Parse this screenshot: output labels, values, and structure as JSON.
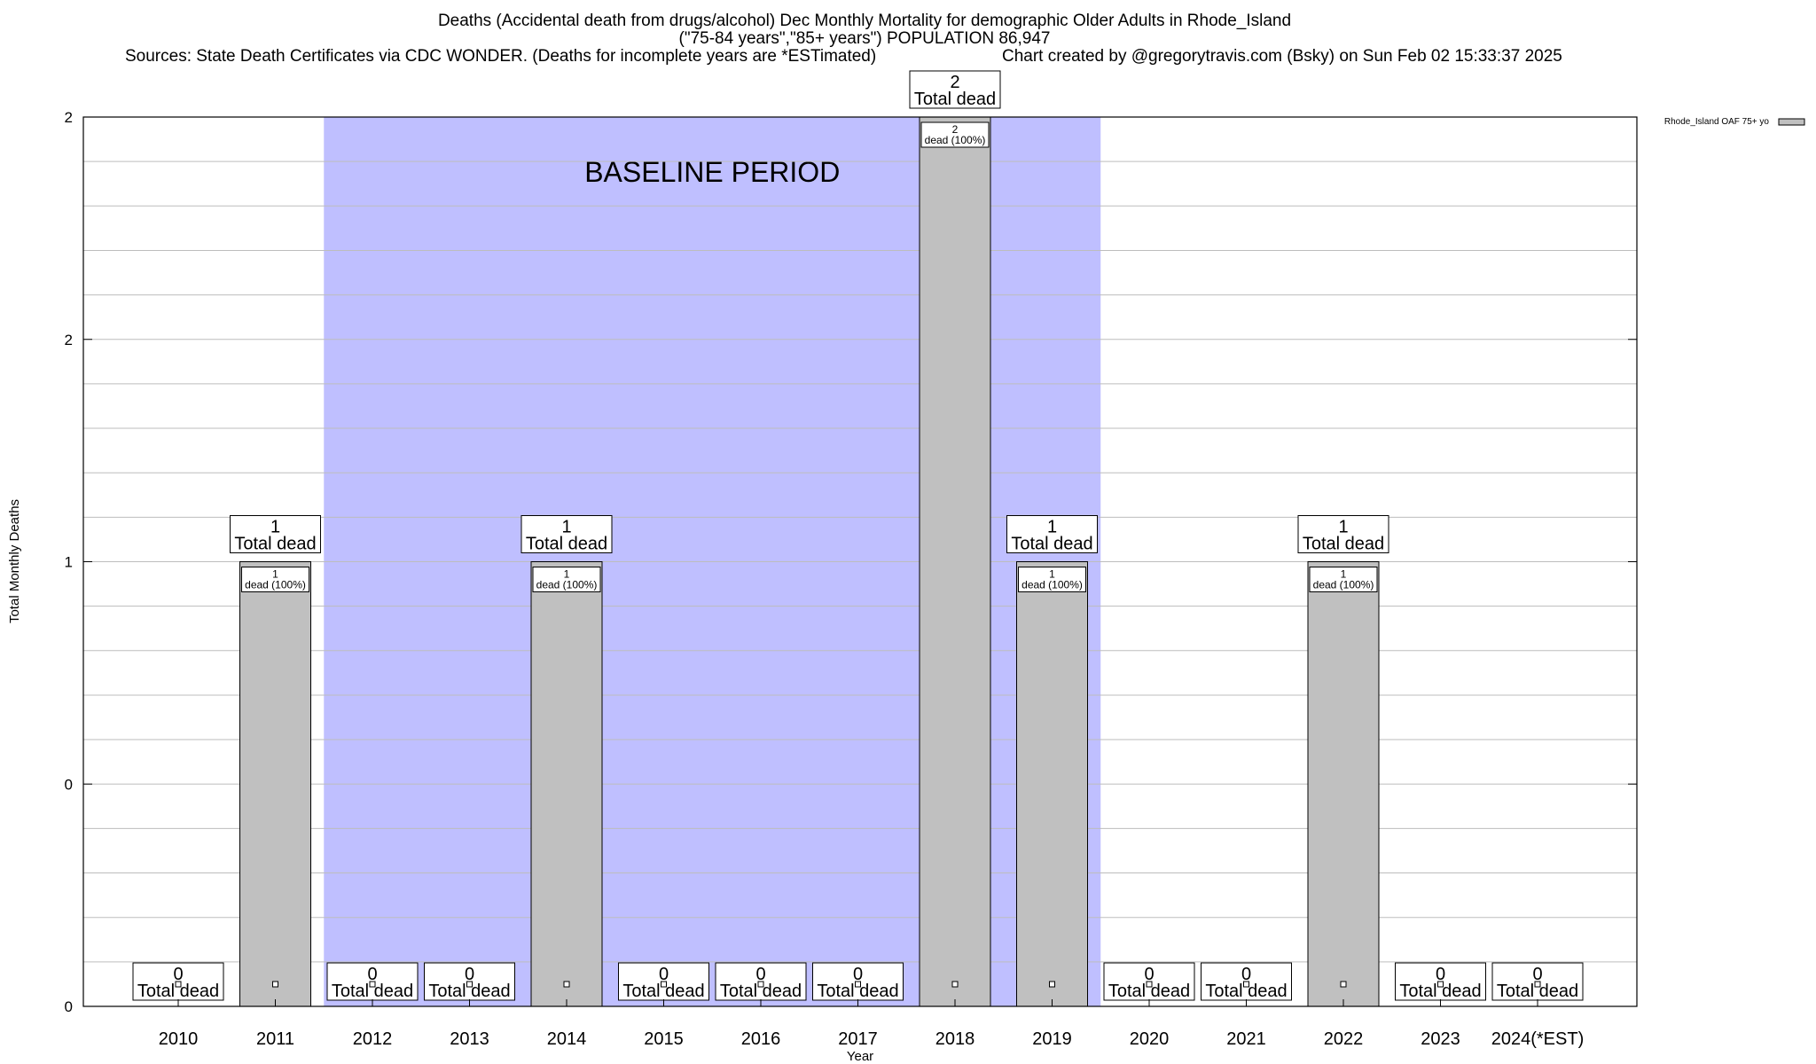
{
  "title_lines": [
    "Deaths (Accidental death from drugs/alcohol) Dec Monthly Mortality for demographic Older Adults in Rhode_Island",
    "(\"75-84 years\",\"85+ years\") POPULATION 86,947",
    "Sources: State Death Certificates via CDC WONDER. (Deaths for incomplete years are *ESTimated)",
    "Chart created by @gregorytravis.com (Bsky) on Sun Feb 02 15:33:37 2025"
  ],
  "chart_data": {
    "type": "bar",
    "xlabel": "Year",
    "ylabel": "Total Monthly Deaths",
    "ylim": [
      0,
      2
    ],
    "y_tick_labels": [
      "0",
      "0",
      "1",
      "2",
      "2"
    ],
    "grid": true,
    "legend": {
      "label": "Rhode_Island OAF 75+ yo",
      "placement": "top-right"
    },
    "categories": [
      "2010",
      "2011",
      "2012",
      "2013",
      "2014",
      "2015",
      "2016",
      "2017",
      "2018",
      "2019",
      "2020",
      "2021",
      "2022",
      "2023",
      "2024(*EST)"
    ],
    "series": [
      {
        "name": "Rhode_Island OAF 75+ yo",
        "values": [
          0,
          1,
          0,
          0,
          1,
          0,
          0,
          0,
          2,
          1,
          0,
          0,
          1,
          0,
          0
        ],
        "color": "#c0c0c0"
      }
    ],
    "total_label_suffix": "Total dead",
    "inner_label_suffix": "dead (100%)",
    "baseline_period": {
      "label": "BASELINE PERIOD",
      "from": "2012",
      "to": "2019",
      "color": "#bfbfff"
    }
  }
}
